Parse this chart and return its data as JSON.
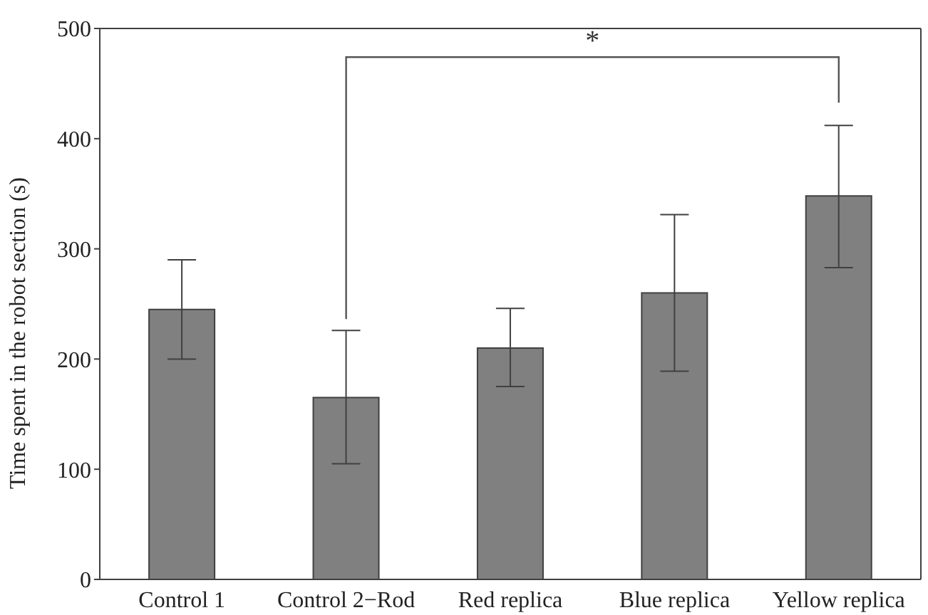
{
  "chart_data": {
    "type": "bar",
    "ylabel": "Time spent in the robot section (s)",
    "categories": [
      "Control 1",
      "Control 2−Rod",
      "Red replica",
      "Blue replica",
      "Yellow replica"
    ],
    "values": [
      245,
      165,
      210,
      260,
      348
    ],
    "errors": [
      [
        200,
        290
      ],
      [
        105,
        226
      ],
      [
        175,
        246
      ],
      [
        189,
        331
      ],
      [
        283,
        412
      ]
    ],
    "color": "#808080",
    "ylim": [
      0,
      500
    ],
    "yticks": [
      0,
      100,
      200,
      300,
      400,
      500
    ],
    "annotations": [
      "*"
    ]
  }
}
